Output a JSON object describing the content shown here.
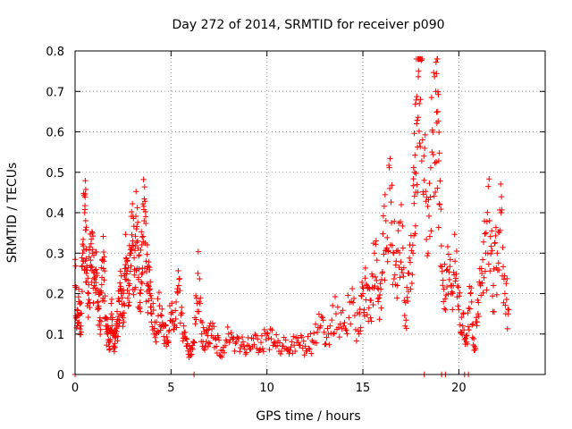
{
  "chart_data": {
    "type": "scatter",
    "title": "Day 272 of 2014, SRMTID for receiver p090",
    "xlabel": "GPS time / hours",
    "ylabel": "SRMTID / TECUs",
    "xlim": [
      0,
      24.5
    ],
    "ylim": [
      0,
      0.8
    ],
    "x_ticks": [
      0,
      5,
      10,
      15,
      20
    ],
    "y_ticks": [
      0,
      0.1,
      0.2,
      0.3,
      0.4,
      0.5,
      0.6,
      0.7,
      0.8
    ],
    "x_tick_labels": [
      "0",
      "5",
      "10",
      "15",
      "20"
    ],
    "y_tick_labels": [
      "0",
      "0.1",
      "0.2",
      "0.3",
      "0.4",
      "0.5",
      "0.6",
      "0.7",
      "0.8"
    ],
    "grid": true,
    "marker": "+",
    "series": [
      {
        "name": "SRMTID",
        "color": "#ff0000",
        "x": [
          0.0,
          0.1,
          0.2,
          0.3,
          0.4,
          0.5,
          0.55,
          0.6,
          0.7,
          0.8,
          0.9,
          1.0,
          1.1,
          1.2,
          1.3,
          1.4,
          1.5,
          1.6,
          1.7,
          1.8,
          1.9,
          2.0,
          2.1,
          2.2,
          2.3,
          2.4,
          2.5,
          2.6,
          2.7,
          2.8,
          2.9,
          3.0,
          3.1,
          3.2,
          3.3,
          3.4,
          3.5,
          3.6,
          3.7,
          3.8,
          3.9,
          4.0,
          4.2,
          4.4,
          4.6,
          4.8,
          5.0,
          5.2,
          5.4,
          5.6,
          5.8,
          6.0,
          6.2,
          6.4,
          6.6,
          6.8,
          7.0,
          7.3,
          7.6,
          8.0,
          8.4,
          8.8,
          9.2,
          9.6,
          10.0,
          10.4,
          10.8,
          11.2,
          11.6,
          12.0,
          12.4,
          12.8,
          13.2,
          13.6,
          14.0,
          14.4,
          14.8,
          15.0,
          15.2,
          15.4,
          15.6,
          15.8,
          16.0,
          16.2,
          16.4,
          16.6,
          16.8,
          17.0,
          17.2,
          17.4,
          17.6,
          17.7,
          17.8,
          17.9,
          18.0,
          18.2,
          18.4,
          18.6,
          18.8,
          18.9,
          19.0,
          19.2,
          19.4,
          19.6,
          19.8,
          20.0,
          20.2,
          20.4,
          20.6,
          20.8,
          21.0,
          21.2,
          21.4,
          21.6,
          21.8,
          22.0,
          22.2,
          22.4,
          22.6
        ],
        "y": [
          0.22,
          0.16,
          0.18,
          0.12,
          0.3,
          0.4,
          0.38,
          0.25,
          0.2,
          0.27,
          0.3,
          0.22,
          0.26,
          0.18,
          0.14,
          0.24,
          0.28,
          0.12,
          0.1,
          0.08,
          0.15,
          0.07,
          0.1,
          0.12,
          0.18,
          0.2,
          0.14,
          0.25,
          0.28,
          0.22,
          0.3,
          0.33,
          0.26,
          0.36,
          0.24,
          0.2,
          0.34,
          0.38,
          0.28,
          0.22,
          0.2,
          0.15,
          0.1,
          0.17,
          0.12,
          0.08,
          0.15,
          0.12,
          0.22,
          0.1,
          0.07,
          0.05,
          0.08,
          0.25,
          0.1,
          0.07,
          0.12,
          0.09,
          0.06,
          0.1,
          0.08,
          0.07,
          0.09,
          0.06,
          0.1,
          0.08,
          0.07,
          0.06,
          0.09,
          0.07,
          0.08,
          0.12,
          0.1,
          0.15,
          0.12,
          0.18,
          0.1,
          0.2,
          0.22,
          0.14,
          0.3,
          0.18,
          0.25,
          0.38,
          0.46,
          0.3,
          0.22,
          0.42,
          0.12,
          0.25,
          0.32,
          0.5,
          0.62,
          0.75,
          0.68,
          0.48,
          0.3,
          0.55,
          0.7,
          0.65,
          0.42,
          0.18,
          0.26,
          0.2,
          0.28,
          0.16,
          0.12,
          0.08,
          0.2,
          0.06,
          0.15,
          0.25,
          0.3,
          0.38,
          0.22,
          0.3,
          0.4,
          0.2,
          0.16
        ],
        "flat": [
          0.0,
          6.2,
          18.2,
          19.1,
          19.3,
          20.3,
          20.5
        ]
      }
    ]
  }
}
